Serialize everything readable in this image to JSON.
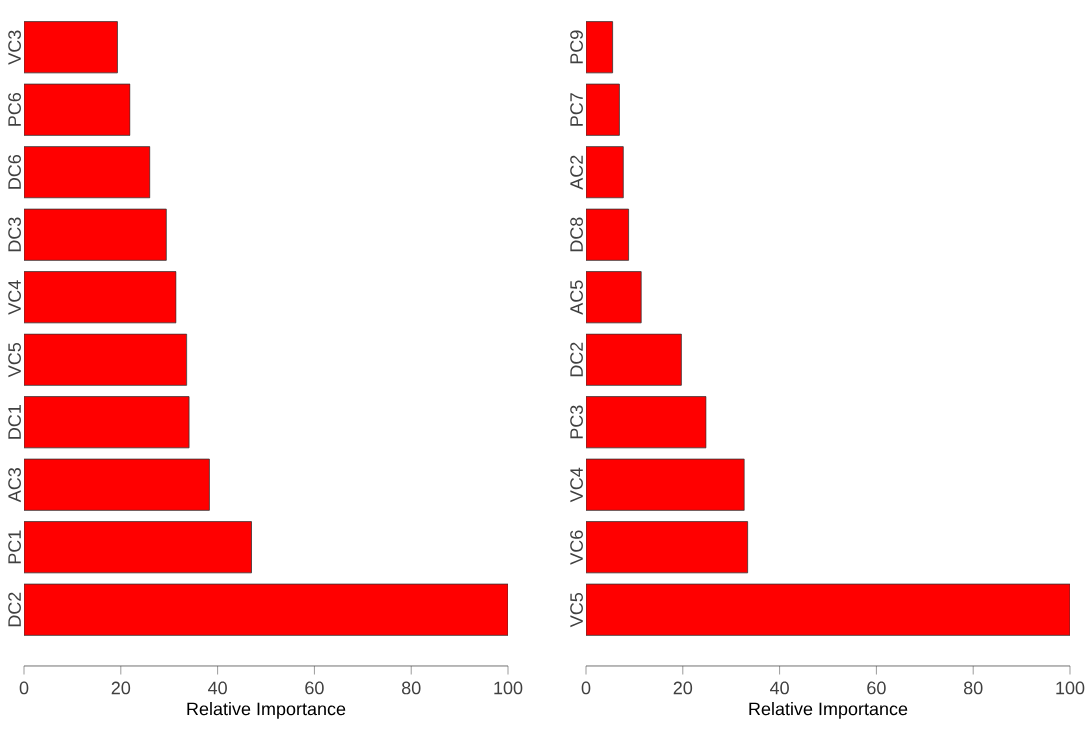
{
  "chart_data": [
    {
      "type": "bar",
      "orientation": "horizontal",
      "categories": [
        "VC3",
        "PC6",
        "DC6",
        "DC3",
        "VC4",
        "VC5",
        "DC1",
        "AC3",
        "PC1",
        "DC2"
      ],
      "values": [
        19.3,
        21.9,
        26.0,
        29.4,
        31.4,
        33.6,
        34.1,
        38.3,
        47.0,
        100
      ],
      "color": "#ff0000",
      "xlabel": "Relative Importance",
      "xlim": [
        0,
        100
      ],
      "xticks": [
        0,
        20,
        40,
        60,
        80,
        100
      ],
      "grid": false
    },
    {
      "type": "bar",
      "orientation": "horizontal",
      "categories": [
        "PC9",
        "PC7",
        "AC2",
        "DC8",
        "AC5",
        "DC2",
        "PC3",
        "VC4",
        "VC6",
        "VC5"
      ],
      "values": [
        5.5,
        6.9,
        7.7,
        8.8,
        11.4,
        19.7,
        24.8,
        32.7,
        33.4,
        100
      ],
      "color": "#ff0000",
      "xlabel": "Relative Importance",
      "xlim": [
        0,
        100
      ],
      "xticks": [
        0,
        20,
        40,
        60,
        80,
        100
      ],
      "grid": false
    }
  ]
}
